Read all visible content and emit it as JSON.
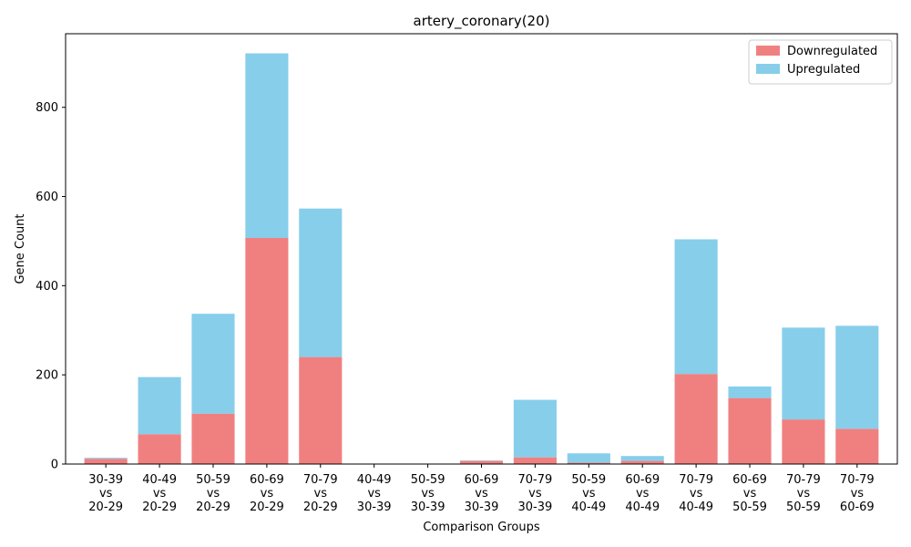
{
  "chart_data": {
    "type": "bar",
    "stacked": true,
    "title": "artery_coronary(20)",
    "xlabel": "Comparison Groups",
    "ylabel": "Gene Count",
    "ylim": [
      0,
      965
    ],
    "yticks": [
      0,
      200,
      400,
      600,
      800
    ],
    "categories": [
      [
        "30-39",
        "vs",
        "20-29"
      ],
      [
        "40-49",
        "vs",
        "20-29"
      ],
      [
        "50-59",
        "vs",
        "20-29"
      ],
      [
        "60-69",
        "vs",
        "20-29"
      ],
      [
        "70-79",
        "vs",
        "20-29"
      ],
      [
        "40-49",
        "vs",
        "30-39"
      ],
      [
        "50-59",
        "vs",
        "30-39"
      ],
      [
        "60-69",
        "vs",
        "30-39"
      ],
      [
        "70-79",
        "vs",
        "30-39"
      ],
      [
        "50-59",
        "vs",
        "40-49"
      ],
      [
        "60-69",
        "vs",
        "40-49"
      ],
      [
        "70-79",
        "vs",
        "40-49"
      ],
      [
        "60-69",
        "vs",
        "50-59"
      ],
      [
        "70-79",
        "vs",
        "50-59"
      ],
      [
        "70-79",
        "vs",
        "60-69"
      ]
    ],
    "series": [
      {
        "name": "Downregulated",
        "color": "#f08080",
        "values": [
          12,
          67,
          113,
          507,
          240,
          0,
          0,
          7,
          15,
          3,
          7,
          202,
          148,
          100,
          79
        ]
      },
      {
        "name": "Upregulated",
        "color": "#87ceeb",
        "values": [
          2,
          128,
          224,
          414,
          333,
          0,
          0,
          1,
          129,
          21,
          11,
          302,
          26,
          206,
          231
        ]
      }
    ],
    "grid": false,
    "legend_position": "top-right"
  }
}
